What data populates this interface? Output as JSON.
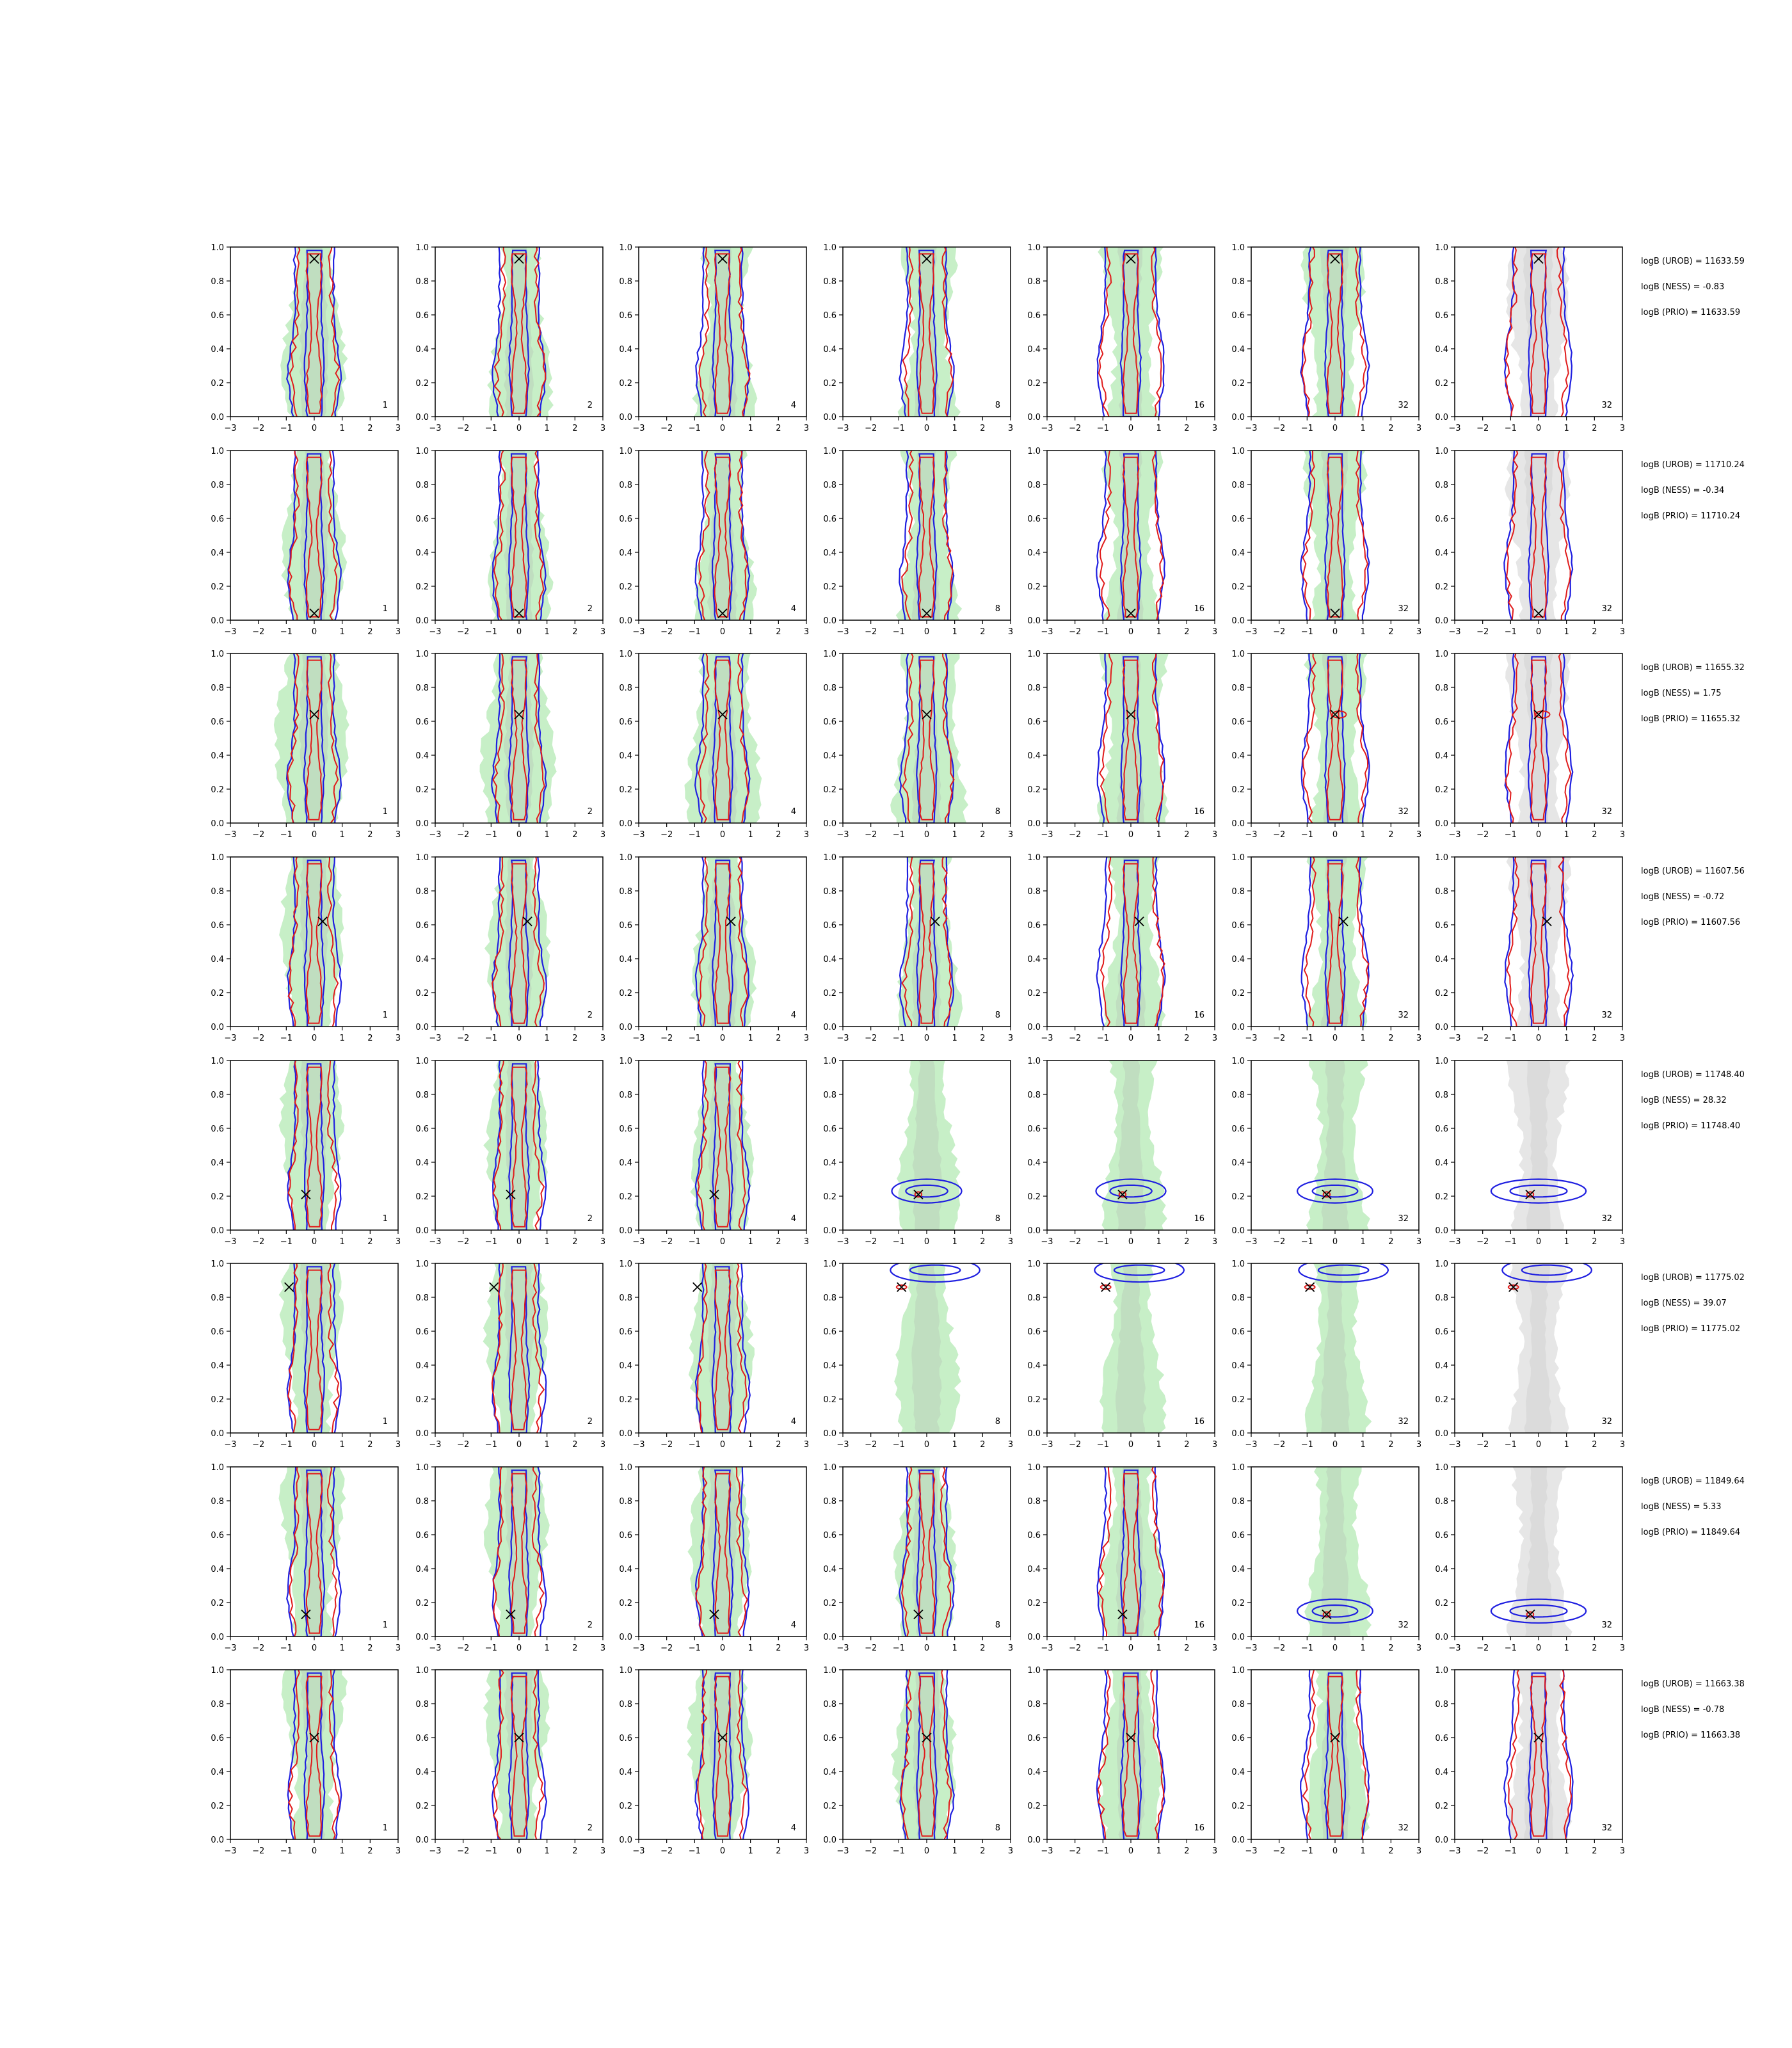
{
  "colors": {
    "filled_prior": "#c7efc7",
    "filled_inner": "#b9cfb9",
    "gray_fill": "#e6e6e6",
    "gray_inner": "#d2d2d2",
    "blue": "#1f1fe0",
    "red": "#e01a1a",
    "marker": "#000000"
  },
  "chart_data": {
    "type": "contour-grid",
    "rows": 8,
    "cols": 7,
    "xlim": [
      -3,
      3
    ],
    "ylim": [
      0,
      1
    ],
    "xticks": [
      "−3",
      "−2",
      "−1",
      "0",
      "1",
      "2",
      "3"
    ],
    "yticks": [
      "0.0",
      "0.2",
      "0.4",
      "0.6",
      "0.8",
      "1.0"
    ],
    "column_labels": [
      "1",
      "2",
      "4",
      "8",
      "16",
      "32",
      "32"
    ],
    "column_style": [
      "green",
      "green",
      "green",
      "green",
      "green",
      "green",
      "gray"
    ],
    "markers": [
      {
        "x": 0.0,
        "y": 0.93
      },
      {
        "x": 0.0,
        "y": 0.04
      },
      {
        "x": 0.0,
        "y": 0.64
      },
      {
        "x": 0.3,
        "y": 0.62
      },
      {
        "x": -0.3,
        "y": 0.21
      },
      {
        "x": -0.9,
        "y": 0.86
      },
      {
        "x": -0.3,
        "y": 0.13
      },
      {
        "x": 0.0,
        "y": 0.6
      }
    ],
    "row_kind": [
      [
        "v",
        "v",
        "v",
        "v",
        "v",
        "v",
        "v"
      ],
      [
        "v",
        "v",
        "v",
        "v",
        "v",
        "v",
        "v"
      ],
      [
        "v",
        "v",
        "v",
        "v",
        "v",
        "vn",
        "vn"
      ],
      [
        "v",
        "v",
        "v",
        "v",
        "v",
        "v",
        "v"
      ],
      [
        "v",
        "v",
        "v",
        "h",
        "h",
        "h",
        "h"
      ],
      [
        "v",
        "v",
        "v",
        "t",
        "t",
        "t",
        "t"
      ],
      [
        "v",
        "v",
        "v",
        "v",
        "v",
        "h",
        "h"
      ],
      [
        "v",
        "v",
        "v",
        "v",
        "v",
        "v",
        "v"
      ]
    ],
    "annotations": [
      [
        "logB (UROB) = 11633.59",
        "logB (NESS) = -0.83",
        "logB (PRIO) = 11633.59"
      ],
      [
        "logB (UROB) = 11710.24",
        "logB (NESS) = -0.34",
        "logB (PRIO) = 11710.24"
      ],
      [
        "logB (UROB) = 11655.32",
        "logB (NESS) = 1.75",
        "logB (PRIO) = 11655.32"
      ],
      [
        "logB (UROB) = 11607.56",
        "logB (NESS) = -0.72",
        "logB (PRIO) = 11607.56"
      ],
      [
        "logB (UROB) = 11748.40",
        "logB (NESS) = 28.32",
        "logB (PRIO) = 11748.40"
      ],
      [
        "logB (UROB) = 11775.02",
        "logB (NESS) = 39.07",
        "logB (PRIO) = 11775.02"
      ],
      [
        "logB (UROB) = 11849.64",
        "logB (NESS) = 5.33",
        "logB (PRIO) = 11849.64"
      ],
      [
        "logB (UROB) = 11663.38",
        "logB (NESS) = -0.78",
        "logB (PRIO) = 11663.38"
      ]
    ]
  }
}
